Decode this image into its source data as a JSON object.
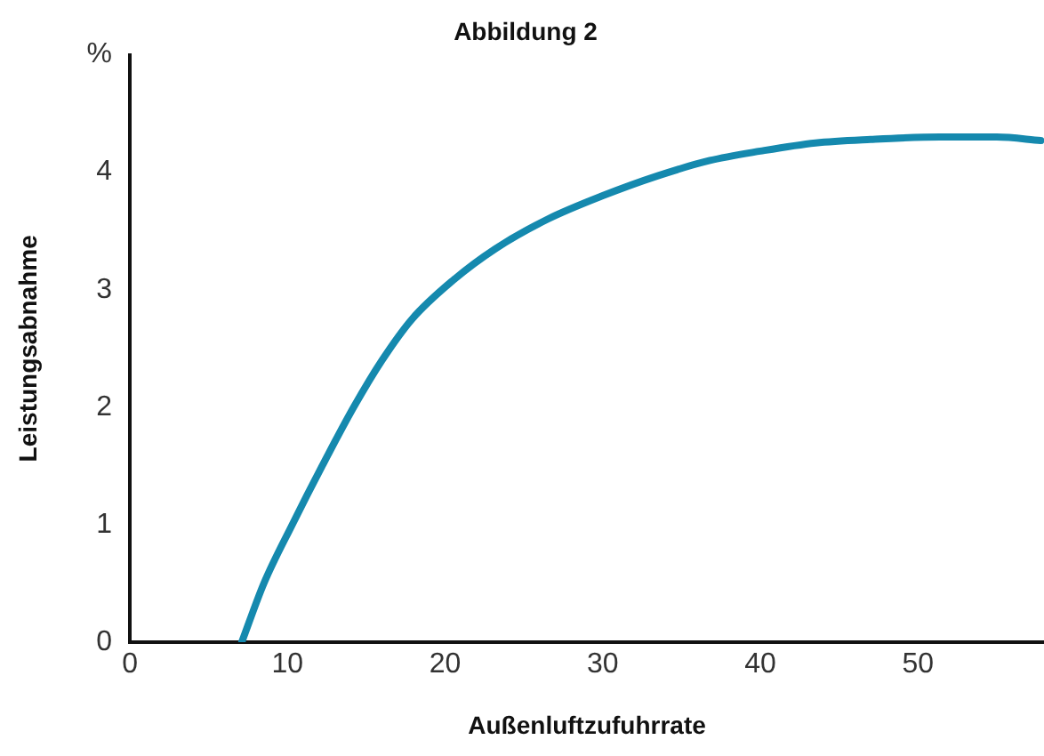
{
  "chart_data": {
    "type": "line",
    "title": "Abbildung 2",
    "xlabel": "Außenluftzufuhrrate",
    "ylabel": "Leistungsabnahme",
    "x": [
      7.1,
      8.5,
      10.3,
      12.2,
      14.2,
      16,
      17.9,
      20.5,
      23.2,
      26.5,
      30,
      33.5,
      36.8,
      40,
      43.5,
      47,
      51.4,
      55,
      57.8
    ],
    "series": [
      {
        "color": "#1589ae",
        "values": [
          0,
          0.5,
          1.0,
          1.5,
          2.0,
          2.4,
          2.75,
          3.08,
          3.35,
          3.6,
          3.8,
          3.97,
          4.1,
          4.18,
          4.25,
          4.28,
          4.3,
          4.3,
          4.27
        ]
      }
    ],
    "xlim": [
      0,
      58
    ],
    "xticks": [
      0,
      10,
      20,
      30,
      40,
      50
    ],
    "ylim": [
      0,
      5
    ],
    "yticks": [
      0,
      1,
      2,
      3,
      4,
      {
        "value": 5,
        "label": "%"
      }
    ],
    "grid": false,
    "legend": false,
    "marker": "none",
    "line_style": "solid"
  }
}
